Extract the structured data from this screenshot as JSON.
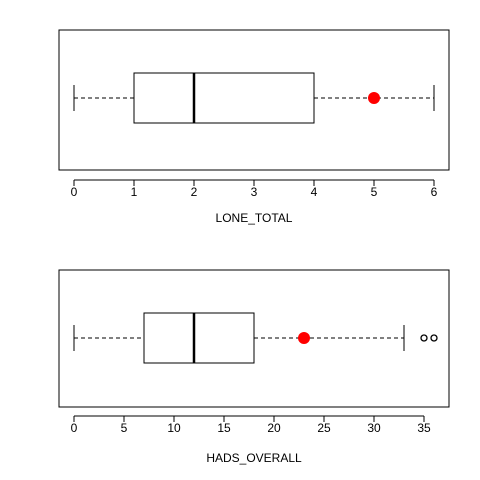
{
  "chart_data": [
    {
      "type": "boxplot",
      "orientation": "horizontal",
      "xlabel": "LONE_TOTAL",
      "xlim": [
        -0.25,
        6.25
      ],
      "ticks": [
        0,
        1,
        2,
        3,
        4,
        5,
        6
      ],
      "tick_labels": [
        "0",
        "1",
        "2",
        "3",
        "4",
        "5",
        "6"
      ],
      "box": {
        "whisker_low": 0,
        "q1": 1,
        "median": 2,
        "q3": 4,
        "whisker_high": 6
      },
      "outliers": [],
      "highlight": {
        "value": 5,
        "color": "#ff0000"
      }
    },
    {
      "type": "boxplot",
      "orientation": "horizontal",
      "xlabel": "HADS_OVERALL",
      "xlim": [
        -1.5,
        37.5
      ],
      "ticks": [
        0,
        5,
        10,
        15,
        20,
        25,
        30,
        35
      ],
      "tick_labels": [
        "0",
        "5",
        "10",
        "15",
        "20",
        "25",
        "30",
        "35"
      ],
      "box": {
        "whisker_low": 0,
        "q1": 7,
        "median": 12,
        "q3": 18,
        "whisker_high": 33
      },
      "outliers": [
        35,
        36
      ],
      "highlight": {
        "value": 23,
        "color": "#ff0000"
      }
    }
  ]
}
